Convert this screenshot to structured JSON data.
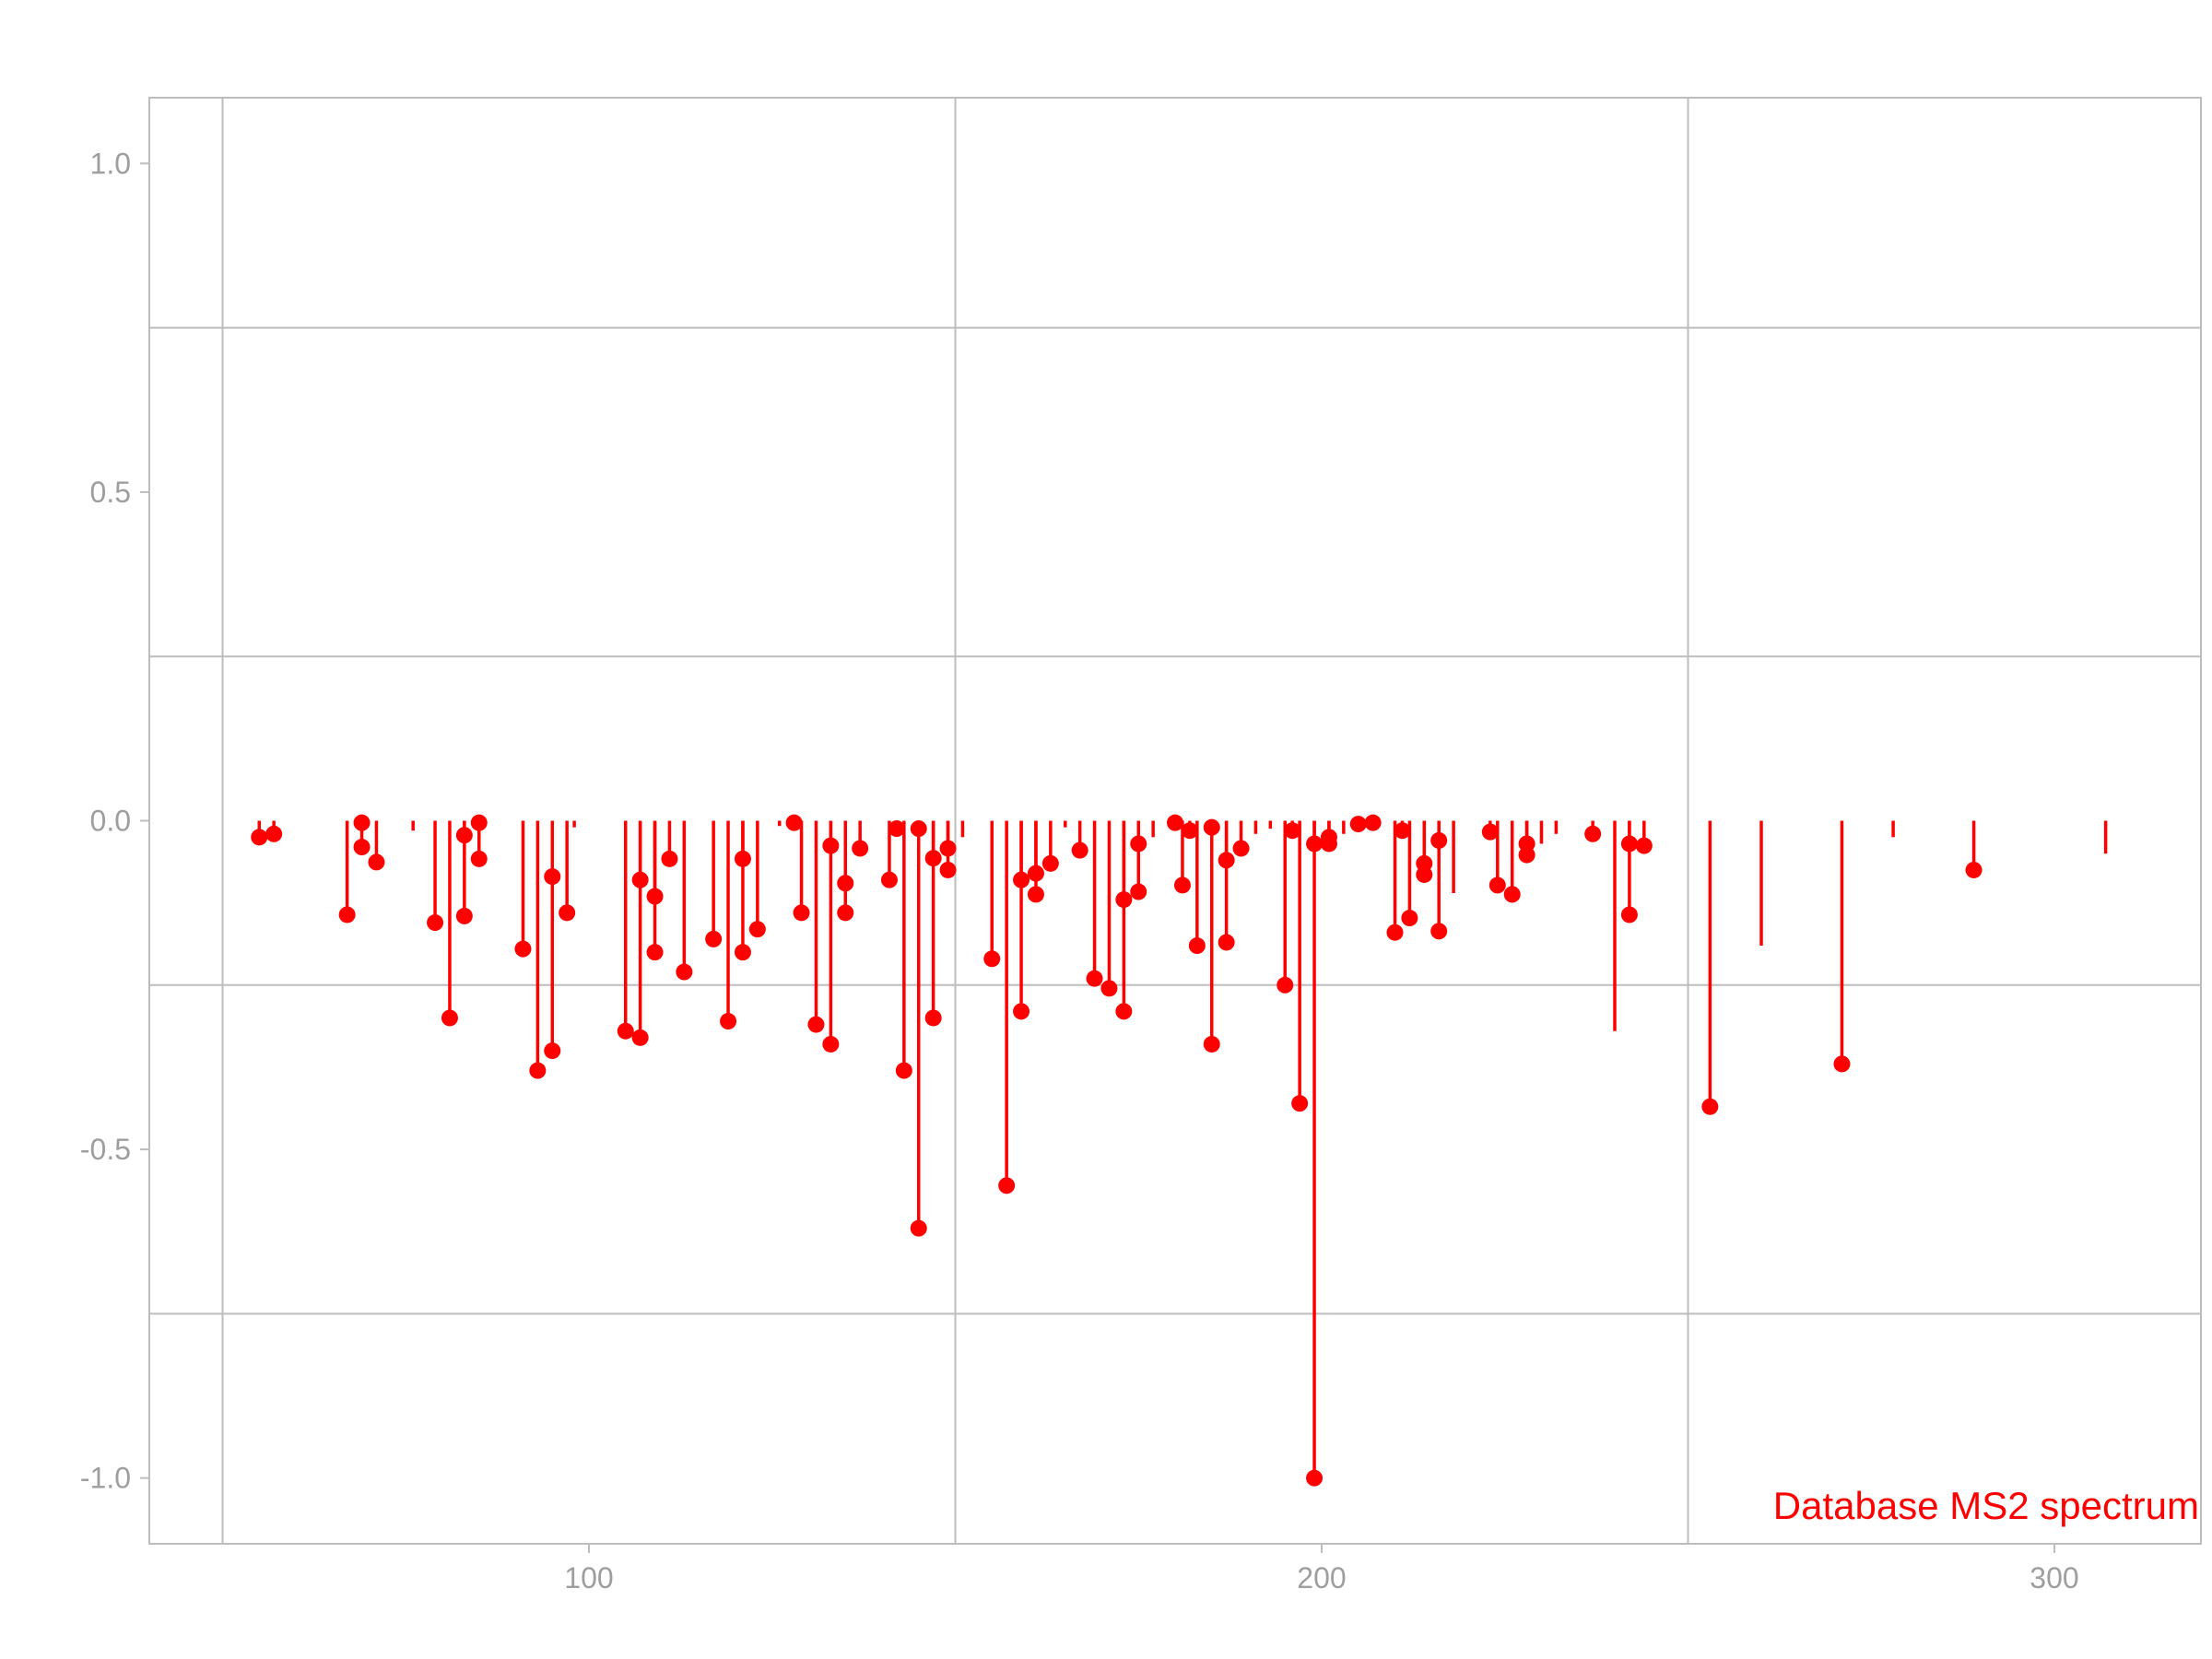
{
  "chart_data": {
    "type": "stem",
    "title": "",
    "xlabel": "",
    "ylabel": "",
    "xlim": [
      40,
      320
    ],
    "ylim": [
      -1.1,
      1.1
    ],
    "x_ticks": [
      100,
      200,
      300
    ],
    "x_tick_labels": [
      "100",
      "200",
      "300"
    ],
    "x_minor_gridlines": [
      50,
      150,
      250
    ],
    "y_ticks": [
      1.0,
      0.5,
      0.0,
      -0.5,
      -1.0
    ],
    "y_tick_labels": [
      "1.0",
      "0.5",
      "0.0",
      "-0.5",
      "-1.0"
    ],
    "y_minor_gridlines": [
      0.75,
      0.25,
      -0.25,
      -0.75
    ],
    "grid": true,
    "colors": {
      "series": "#ff0000",
      "grid": "#bdbdbd",
      "tick_text": "#9e9e9e"
    },
    "annotation": "Database MS2 spectrum",
    "series": [
      {
        "marker": "point",
        "x": [
          55,
          57,
          67,
          69,
          69,
          71,
          79,
          81,
          83,
          83,
          85,
          85,
          91,
          93,
          95,
          95,
          97,
          105,
          107,
          107,
          109,
          109,
          111,
          113,
          117,
          119,
          121,
          121,
          123,
          128,
          129,
          131,
          133,
          133,
          135,
          135,
          137,
          141,
          142,
          143,
          145,
          145,
          147,
          147,
          149,
          149,
          155,
          157,
          159,
          159,
          161,
          161,
          163,
          167,
          169,
          171,
          173,
          173,
          175,
          175,
          180,
          181,
          182,
          183,
          185,
          185,
          187,
          187,
          189,
          195,
          196,
          197,
          199,
          199,
          201,
          201,
          205,
          207,
          210,
          211,
          212,
          214,
          214,
          216,
          216,
          223,
          224,
          226,
          228,
          228,
          237,
          242,
          242,
          244,
          253,
          271,
          289
        ],
        "y": [
          -0.025,
          -0.02,
          -0.143,
          -0.003,
          -0.04,
          -0.063,
          -0.155,
          -0.3,
          -0.022,
          -0.145,
          -0.003,
          -0.058,
          -0.195,
          -0.38,
          -0.085,
          -0.35,
          -0.14,
          -0.32,
          -0.33,
          -0.09,
          -0.2,
          -0.115,
          -0.058,
          -0.23,
          -0.18,
          -0.305,
          -0.058,
          -0.2,
          -0.165,
          -0.003,
          -0.14,
          -0.31,
          -0.038,
          -0.34,
          -0.14,
          -0.095,
          -0.042,
          -0.09,
          -0.012,
          -0.38,
          -0.62,
          -0.012,
          -0.3,
          -0.057,
          -0.042,
          -0.075,
          -0.21,
          -0.555,
          -0.09,
          -0.29,
          -0.08,
          -0.112,
          -0.065,
          -0.045,
          -0.24,
          -0.255,
          -0.29,
          -0.12,
          -0.108,
          -0.035,
          -0.003,
          -0.098,
          -0.015,
          -0.19,
          -0.34,
          -0.01,
          -0.06,
          -0.185,
          -0.042,
          -0.25,
          -0.015,
          -0.43,
          -1.0,
          -0.035,
          -0.025,
          -0.035,
          -0.005,
          -0.003,
          -0.17,
          -0.015,
          -0.148,
          -0.065,
          -0.082,
          -0.03,
          -0.168,
          -0.017,
          -0.098,
          -0.112,
          -0.035,
          -0.052,
          -0.02,
          -0.035,
          -0.143,
          -0.038,
          -0.435,
          -0.37,
          -0.075
        ]
      },
      {
        "marker": "none",
        "x": [
          76,
          98,
          126,
          151,
          165,
          177,
          191,
          193,
          203,
          218,
          230,
          232,
          240,
          260,
          278,
          307
        ],
        "y": [
          -0.015,
          -0.01,
          -0.008,
          -0.025,
          -0.01,
          -0.025,
          -0.02,
          -0.012,
          -0.02,
          -0.11,
          -0.035,
          -0.02,
          -0.32,
          -0.19,
          -0.025,
          -0.05
        ]
      }
    ]
  }
}
